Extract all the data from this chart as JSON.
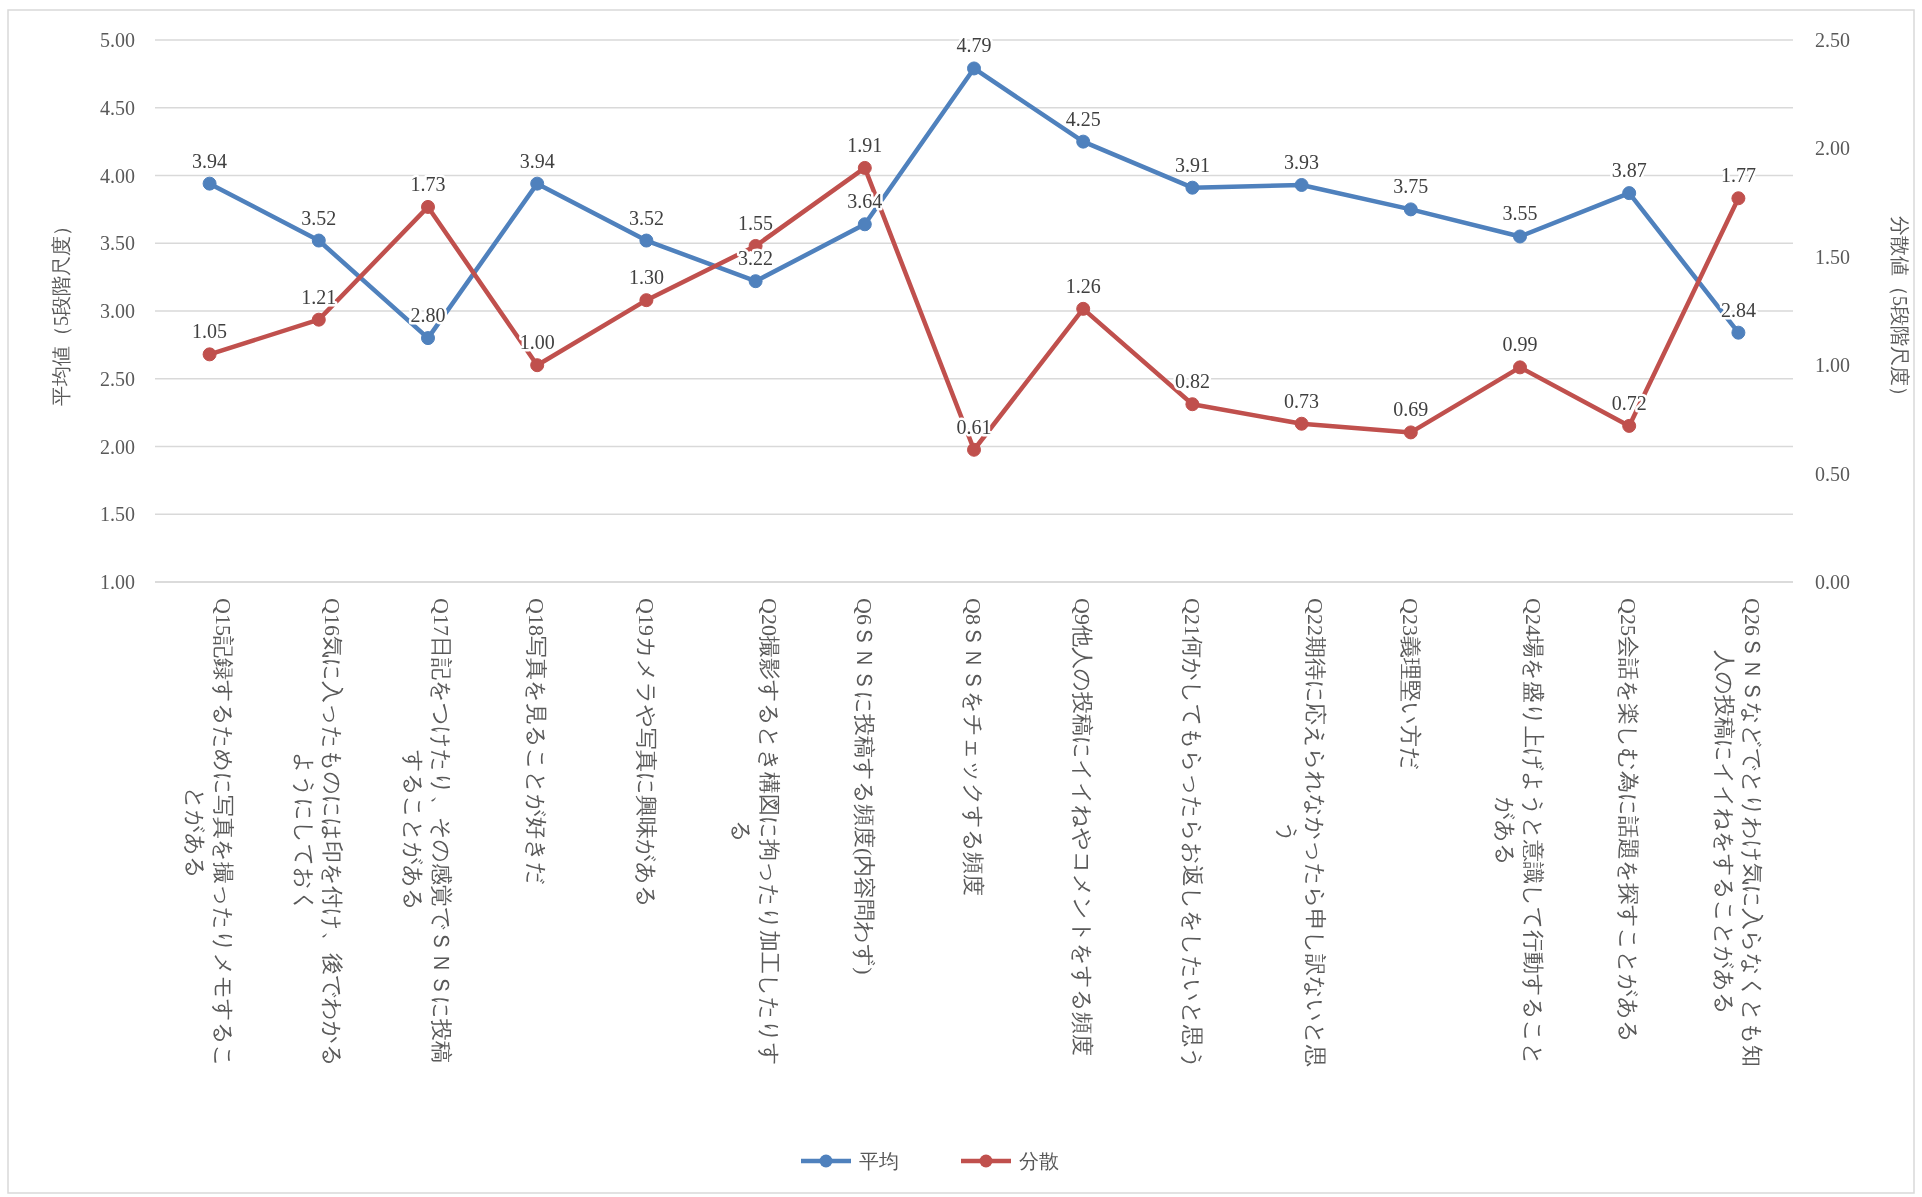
{
  "chart_data": {
    "type": "line",
    "categories": [
      "Q15記録するために写真を撮ったりメモすることがある",
      "Q16気に入ったものには印を付け、後でわかるようにしておく",
      "Q17日記をつけたり、その感覚でＳＮＳに投稿することがある",
      "Q18写真を見ることが好きだ",
      "Q19カメラや写真に興味がある",
      "Q20撮影するとき構図に拘ったり加工したりする",
      "Q6ＳＮＳに投稿する頻度(内容問わず)",
      "Q8ＳＮＳをチェックする頻度",
      "Q9他人の投稿にイイねやコメントをする頻度",
      "Q21何かしてもらったらお返しをしたいと思う",
      "Q22期待に応えられなかったら申し訳ないと思う",
      "Q23義理堅い方だ",
      "Q24場を盛り上げようと意識して行動することがある",
      "Q25会話を楽しむ為に話題を探すことがある",
      "Q26ＳＮＳなどでとりわけ気に入らなくとも知人の投稿にイイねをすることがある"
    ],
    "series": [
      {
        "name": "平均",
        "color": "#4f81bd",
        "values": [
          3.94,
          3.52,
          2.8,
          3.94,
          3.52,
          3.22,
          3.64,
          4.79,
          4.25,
          3.91,
          3.93,
          3.75,
          3.55,
          3.87,
          2.84
        ],
        "value_labels": [
          "3.94",
          "3.52",
          "2.80",
          "3.94",
          "3.52",
          "3.22",
          "3.64",
          "4.79",
          "4.25",
          "3.91",
          "3.93",
          "3.75",
          "3.55",
          "3.87",
          "2.84"
        ]
      },
      {
        "name": "分散",
        "color": "#c0504d",
        "axis": "y2",
        "values": [
          1.05,
          1.21,
          1.73,
          1.0,
          1.3,
          1.55,
          1.91,
          0.61,
          1.26,
          0.82,
          0.73,
          0.69,
          0.99,
          0.72,
          1.77
        ],
        "value_labels": [
          "1.05",
          "1.21",
          "1.73",
          "1.00",
          "1.30",
          "1.55",
          "1.91",
          "0.61",
          "1.26",
          "0.82",
          "0.73",
          "0.69",
          "0.99",
          "0.72",
          "1.77"
        ]
      }
    ],
    "ylabel": "平均値（5段階尺度）",
    "y2label": "分散値（5段階尺度）",
    "ylim": [
      1,
      5
    ],
    "yticks": [
      {
        "value": 1,
        "label": "1.00"
      },
      {
        "value": 1.5,
        "label": "1.50"
      },
      {
        "value": 2,
        "label": "2.00"
      },
      {
        "value": 2.5,
        "label": "2.50"
      },
      {
        "value": 3,
        "label": "3.00"
      },
      {
        "value": 3.5,
        "label": "3.50"
      },
      {
        "value": 4,
        "label": "4.00"
      },
      {
        "value": 4.5,
        "label": "4.50"
      },
      {
        "value": 5,
        "label": "5.00"
      }
    ],
    "y2lim": [
      0,
      2.5
    ],
    "y2ticks": [
      {
        "value": 0,
        "label": "0.00"
      },
      {
        "value": 0.5,
        "label": "0.50"
      },
      {
        "value": 1,
        "label": "1.00"
      },
      {
        "value": 1.5,
        "label": "1.50"
      },
      {
        "value": 2,
        "label": "2.00"
      },
      {
        "value": 2.5,
        "label": "2.50"
      }
    ],
    "grid": "y",
    "legend": "bottom",
    "marker": "circle",
    "line_style": "solid"
  }
}
